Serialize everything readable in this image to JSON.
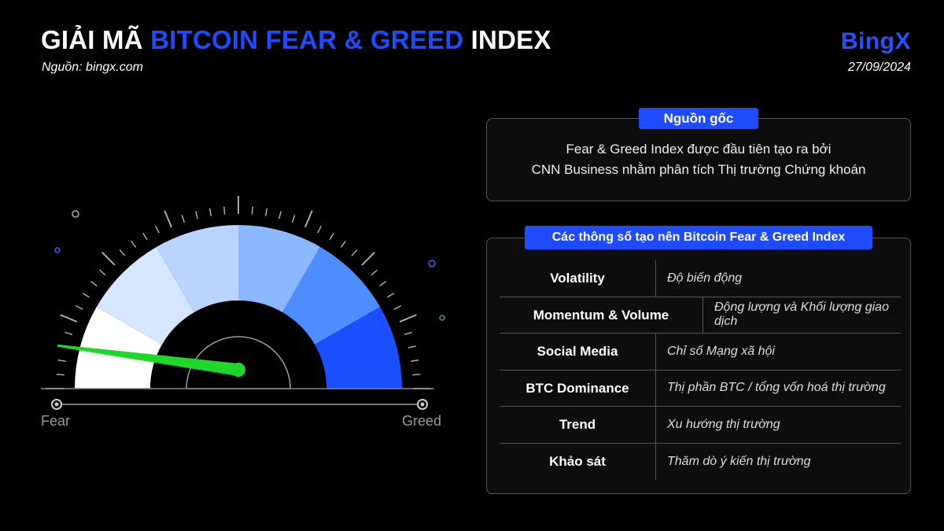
{
  "header": {
    "title_prefix": "GIẢI MÃ",
    "title_accent": "BITCOIN FEAR & GREED",
    "title_suffix": "INDEX",
    "source": "Nguồn: bingx.com",
    "brand": "BingX",
    "date": "27/09/2024"
  },
  "gauge": {
    "label_left": "Fear",
    "label_right": "Greed",
    "needle_fraction": 0.07,
    "needle_color": "#1fd62a",
    "segment_colors": [
      "#ffffff",
      "#d6e6ff",
      "#b8d4ff",
      "#8cb8ff",
      "#4d8dff",
      "#1a4fff"
    ]
  },
  "origin": {
    "heading": "Nguồn gốc",
    "lines": [
      "Fear & Greed Index được đầu tiên tạo ra bởi",
      "CNN Business nhằm phân tích Thị trường Chứng khoán"
    ]
  },
  "params": {
    "heading": "Các thông số tạo nên Bitcoin Fear & Greed Index",
    "rows": [
      {
        "name": "Volatility",
        "desc": "Độ biến động"
      },
      {
        "name": "Momentum & Volume",
        "desc": "Động lượng và Khối lượng giao dịch"
      },
      {
        "name": "Social Media",
        "desc": "Chỉ số Mạng xã hội"
      },
      {
        "name": "BTC Dominance",
        "desc": "Thị phần BTC / tổng vốn hoá thị trường"
      },
      {
        "name": "Trend",
        "desc": "Xu hướng thị trường"
      },
      {
        "name": "Khảo sát",
        "desc": "Thăm dò ý kiến thị trường"
      }
    ]
  },
  "colors": {
    "accent": "#1f4bff"
  }
}
